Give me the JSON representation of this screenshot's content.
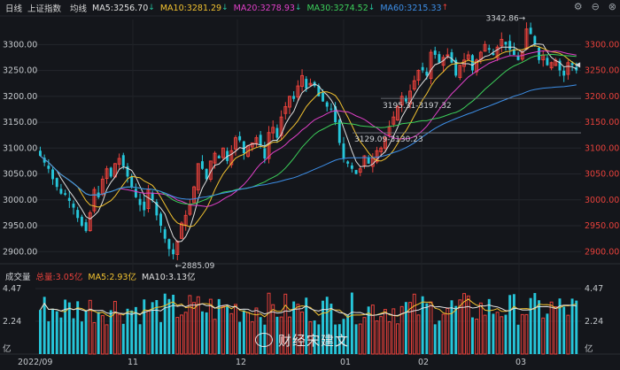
{
  "header": {
    "period": "日线",
    "index_name": "上证指数",
    "avg_label": "均线",
    "mas": [
      {
        "label": "MA5:3256.70",
        "dir": "↓",
        "color": "#e0e0e0"
      },
      {
        "label": "MA10:3281.29",
        "dir": "↓",
        "color": "#f2c230"
      },
      {
        "label": "MA20:3278.93",
        "dir": "↓",
        "color": "#e040c8"
      },
      {
        "label": "MA30:3274.52",
        "dir": "↓",
        "color": "#3ccf5a"
      },
      {
        "label": "MA60:3215.33",
        "dir": "↑",
        "color": "#3d8fe8"
      }
    ],
    "icons": [
      "settings-icon",
      "minus-icon",
      "close-icon"
    ]
  },
  "price_axis": {
    "ticks": [
      "3300.00",
      "3250.00",
      "3200.00",
      "3150.00",
      "3100.00",
      "3050.00",
      "3000.00",
      "2950.00",
      "2900.00"
    ],
    "values": [
      3300,
      3250,
      3200,
      3150,
      3100,
      3050,
      3000,
      2950,
      2900
    ]
  },
  "annotations": {
    "high": "3342.86",
    "low": "2885.09",
    "gap1": "3195.31-3197.32",
    "gap2": "3129.09-3130.23"
  },
  "volume": {
    "title": "成交量",
    "total": "总量:3.05亿",
    "ma5": "MA5:2.93亿",
    "ma10": "MA10:3.13亿",
    "ticks": [
      "4.47",
      "2.24"
    ],
    "unit": "亿"
  },
  "x_axis": [
    "2022/09",
    "11",
    "12",
    "01",
    "02",
    "03"
  ],
  "watermark": "财经宋建文",
  "colors": {
    "up": "#e8413b",
    "down": "#26c6da",
    "ma5": "#e0e0e0",
    "ma10": "#f2c230",
    "ma20": "#e040c8",
    "ma30": "#3ccf5a",
    "ma60": "#3d8fe8"
  },
  "chart_data": {
    "type": "candlestick",
    "ylim": [
      2880,
      3345
    ],
    "closes": [
      3085,
      3072,
      3060,
      3040,
      3025,
      3012,
      3010,
      2998,
      2985,
      2965,
      2950,
      2940,
      2975,
      3020,
      3005,
      3040,
      3060,
      3045,
      3070,
      3080,
      3065,
      3045,
      3025,
      3005,
      2990,
      2980,
      3020,
      3000,
      2970,
      2950,
      2925,
      2905,
      2895,
      2920,
      2955,
      2970,
      2990,
      3025,
      3070,
      3060,
      3040,
      3075,
      3090,
      3080,
      3100,
      3075,
      3095,
      3120,
      3115,
      3090,
      3105,
      3110,
      3120,
      3105,
      3080,
      3130,
      3140,
      3120,
      3160,
      3180,
      3200,
      3195,
      3220,
      3240,
      3215,
      3225,
      3220,
      3200,
      3190,
      3180,
      3175,
      3150,
      3110,
      3080,
      3070,
      3060,
      3050,
      3060,
      3085,
      3070,
      3080,
      3095,
      3100,
      3120,
      3140,
      3160,
      3180,
      3200,
      3190,
      3210,
      3230,
      3250,
      3250,
      3240,
      3285,
      3280,
      3265,
      3275,
      3280,
      3265,
      3240,
      3260,
      3270,
      3280,
      3250,
      3270,
      3285,
      3300,
      3290,
      3280,
      3295,
      3310,
      3300,
      3290,
      3280,
      3270,
      3285,
      3330,
      3320,
      3300,
      3270,
      3280,
      3260,
      3265,
      3270,
      3250,
      3240,
      3265,
      3260,
      3250
    ],
    "vol_max": 4.47
  }
}
